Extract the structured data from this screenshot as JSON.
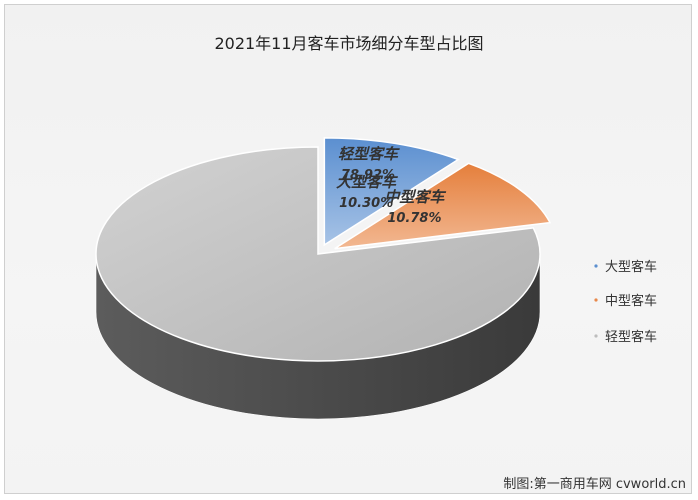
{
  "chart_data": {
    "type": "pie",
    "title": "2021年11月客车市场细分车型占比图",
    "categories": [
      "大型客车",
      "中型客车",
      "轻型客车"
    ],
    "values": [
      10.3,
      10.78,
      78.92
    ],
    "value_labels": [
      "10.30%",
      "10.78%",
      "78.92%"
    ],
    "legend_position": "right",
    "colors": {
      "大型客车": "#5b8fcf",
      "中型客车": "#e8884a",
      "轻型客车": "#bdbdbd"
    },
    "style": "3d-exploded"
  },
  "credit": "制图:第一商用车网 cvworld.cn"
}
